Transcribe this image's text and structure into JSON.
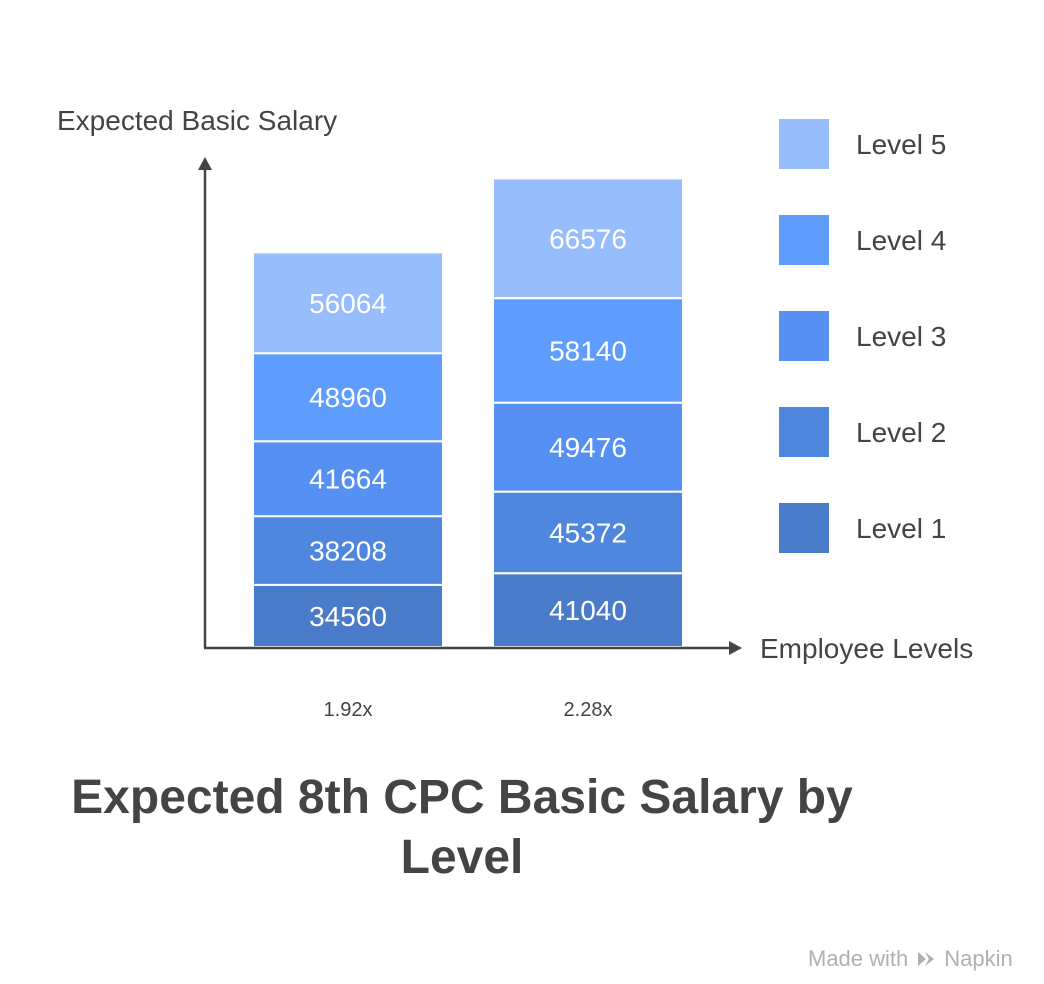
{
  "chart_data": {
    "type": "bar",
    "stacked": true,
    "title": "Expected 8th CPC Basic Salary by Level",
    "ylabel": "Expected Basic Salary",
    "xlabel": "Employee Levels",
    "categories": [
      "1.92x",
      "2.28x"
    ],
    "series": [
      {
        "name": "Level 1",
        "color": "#4a7bc8",
        "values": [
          34560,
          41040
        ]
      },
      {
        "name": "Level 2",
        "color": "#4f87de",
        "values": [
          38208,
          45372
        ]
      },
      {
        "name": "Level 3",
        "color": "#5590f2",
        "values": [
          41664,
          49476
        ]
      },
      {
        "name": "Level 4",
        "color": "#5e9dfd",
        "values": [
          48960,
          58140
        ]
      },
      {
        "name": "Level 5",
        "color": "#97bdfc",
        "values": [
          56064,
          66576
        ]
      }
    ],
    "legend": "right",
    "grid": false
  },
  "watermark": {
    "prefix": "Made with",
    "brand": "Napkin",
    "icon": "napkin-logo-icon"
  },
  "colors": {
    "axis": "#444444",
    "text": "#444444",
    "bar_label": "#ffffff"
  }
}
